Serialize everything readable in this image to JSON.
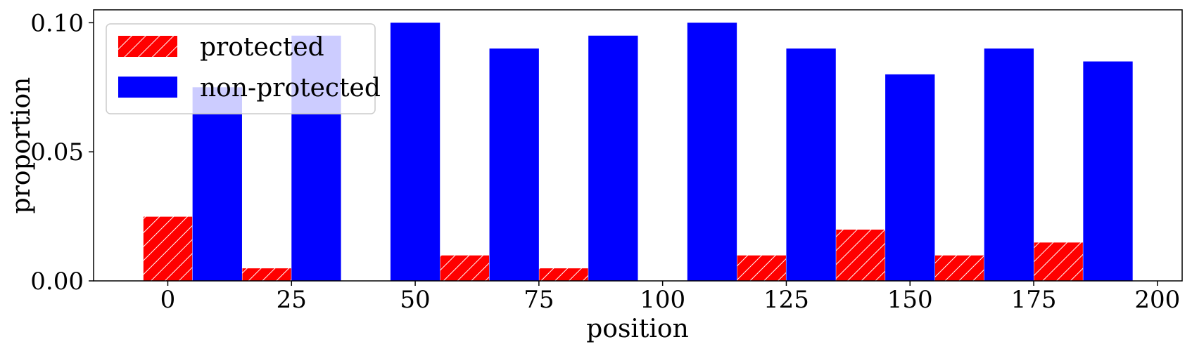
{
  "chart_data": {
    "type": "bar",
    "xlabel": "position",
    "ylabel": "proportion",
    "xlim": [
      -15,
      205
    ],
    "ylim": [
      0,
      0.105
    ],
    "xticks": [
      {
        "value": 0,
        "label": "0"
      },
      {
        "value": 25,
        "label": "25"
      },
      {
        "value": 50,
        "label": "50"
      },
      {
        "value": 75,
        "label": "75"
      },
      {
        "value": 100,
        "label": "100"
      },
      {
        "value": 125,
        "label": "125"
      },
      {
        "value": 150,
        "label": "150"
      },
      {
        "value": 175,
        "label": "175"
      },
      {
        "value": 200,
        "label": "200"
      }
    ],
    "yticks": [
      {
        "value": 0.0,
        "label": "0.00"
      },
      {
        "value": 0.05,
        "label": "0.05"
      },
      {
        "value": 0.1,
        "label": "0.10"
      }
    ],
    "bar_width": 10,
    "series": [
      {
        "name": "protected",
        "color": "#ff0000",
        "hatch": "diagonal",
        "x": [
          0,
          20,
          40,
          60,
          80,
          100,
          120,
          140,
          160,
          180
        ],
        "values": [
          0.025,
          0.005,
          0.0,
          0.01,
          0.005,
          0.0,
          0.01,
          0.02,
          0.01,
          0.015
        ]
      },
      {
        "name": "non-protected",
        "color": "#0000ff",
        "x": [
          10,
          30,
          50,
          70,
          90,
          110,
          130,
          150,
          170,
          190
        ],
        "values": [
          0.075,
          0.095,
          0.1,
          0.09,
          0.095,
          0.1,
          0.09,
          0.08,
          0.09,
          0.085
        ]
      }
    ],
    "legend": {
      "position": "top-left"
    },
    "grid": false
  }
}
